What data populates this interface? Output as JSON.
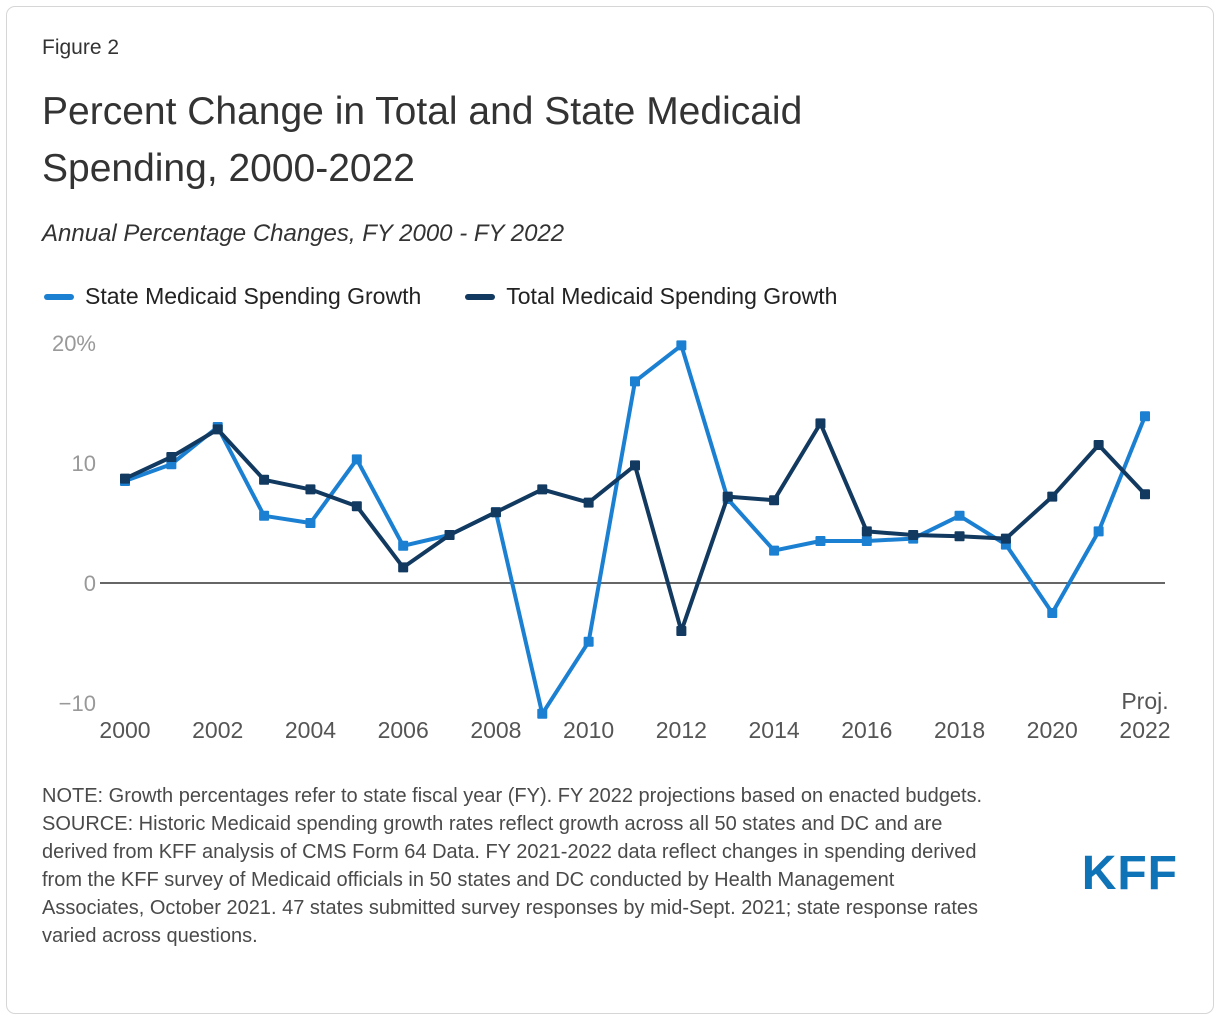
{
  "figure_label": "Figure 2",
  "title_lines": [
    "Percent Change in Total and State Medicaid",
    "Spending, 2000-2022"
  ],
  "subtitle": "Annual Percentage Changes, FY 2000 - FY 2022",
  "colors": {
    "state_series": "#1b80d2",
    "total_series": "#12395f",
    "y_axis_text": "#999999",
    "x_axis_text": "#555555",
    "zero_line": "#333333",
    "kff_blue": "#0f73b8",
    "body_text": "#333333",
    "note_text": "#4a4a4a"
  },
  "chart_data": {
    "type": "line",
    "title": "Percent Change in Total and State Medicaid Spending, 2000-2022",
    "subtitle": "Annual Percentage Changes, FY 2000 - FY 2022",
    "x": [
      2000,
      2001,
      2002,
      2003,
      2004,
      2005,
      2006,
      2007,
      2008,
      2009,
      2010,
      2011,
      2012,
      2013,
      2014,
      2015,
      2016,
      2017,
      2018,
      2019,
      2020,
      2021,
      2022
    ],
    "series": [
      {
        "id": "state-medicaid",
        "name": "State Medicaid Spending Growth",
        "color": "#1b80d2",
        "values": [
          8.5,
          9.9,
          13.0,
          5.6,
          5.0,
          10.3,
          3.1,
          4.0,
          5.9,
          -10.9,
          -4.9,
          16.8,
          19.8,
          7.0,
          2.7,
          3.5,
          3.5,
          3.7,
          5.6,
          3.2,
          -2.5,
          4.3,
          13.9
        ]
      },
      {
        "id": "total-medicaid",
        "name": "Total Medicaid Spending Growth",
        "color": "#12395f",
        "values": [
          8.7,
          10.5,
          12.8,
          8.6,
          7.8,
          6.4,
          1.3,
          4.0,
          5.9,
          7.8,
          6.7,
          9.8,
          -4.0,
          7.2,
          6.9,
          13.3,
          4.3,
          4.0,
          3.9,
          3.7,
          7.2,
          11.5,
          7.4
        ]
      }
    ],
    "yticks": [
      {
        "value": 20,
        "label": "20%"
      },
      {
        "value": 10,
        "label": "10"
      },
      {
        "value": 0,
        "label": "0"
      },
      {
        "value": -10,
        "label": "−10"
      }
    ],
    "xtick_years": [
      2000,
      2002,
      2004,
      2006,
      2008,
      2010,
      2012,
      2014,
      2016,
      2018,
      2020,
      2022
    ],
    "proj_label": "Proj.",
    "ylim": [
      -13,
      21
    ],
    "grid": false,
    "legend_position": "top-left"
  },
  "note": "NOTE: Growth percentages refer to state fiscal year (FY). FY 2022 projections based on enacted budgets.",
  "source": "SOURCE: Historic Medicaid spending growth rates reflect growth across all 50 states and DC and are derived from KFF analysis of CMS Form 64 Data. FY 2021-2022 data reflect changes in spending derived from the KFF survey of Medicaid officials in 50 states and DC conducted by Health Management Associates, October 2021. 47 states submitted survey responses by mid-Sept. 2021; state response rates varied across questions.",
  "logo_text": "KFF"
}
